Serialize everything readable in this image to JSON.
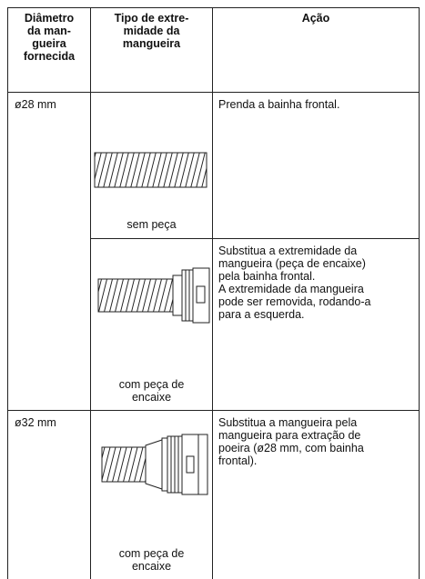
{
  "header": {
    "columns": [
      [
        "Diâmetro",
        "da man-",
        "gueira",
        "fornecida"
      ],
      [
        "Tipo de extre-",
        "midade da",
        "mangueira"
      ],
      [
        "Ação"
      ]
    ]
  },
  "rows": [
    {
      "diameter": "ø28 mm",
      "variants": [
        {
          "end_type": [
            "sem peça"
          ],
          "action": [
            "Prenda a bainha frontal."
          ]
        },
        {
          "end_type": [
            "com peça de",
            "encaixe"
          ],
          "action": [
            "Substitua a extremidade da",
            "mangueira (peça de encaixe)",
            "pela bainha frontal.",
            "A extremidade da mangueira",
            "pode ser removida, rodando-a",
            "para a esquerda."
          ]
        }
      ]
    },
    {
      "diameter": "ø32 mm",
      "variants": [
        {
          "end_type": [
            "com peça de",
            "encaixe"
          ],
          "action": [
            "Substitua a mangueira pela",
            "mangueira para extração de",
            "poeira (ø28 mm, com bainha",
            "frontal)."
          ]
        }
      ]
    }
  ]
}
